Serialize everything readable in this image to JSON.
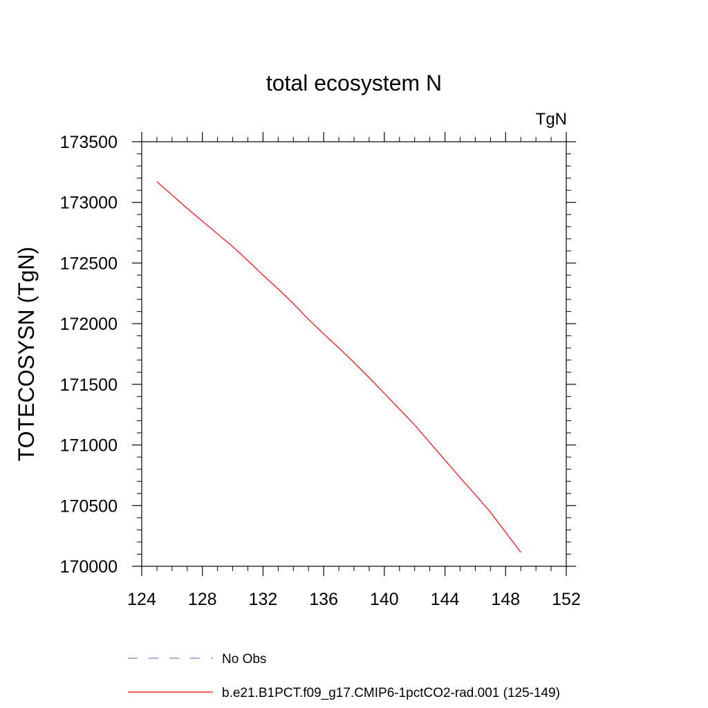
{
  "chart_data": {
    "type": "line",
    "title": "total ecosystem N",
    "units_label": "TgN",
    "xlabel": "",
    "ylabel": "TOTECOSYSN  (TgN)",
    "xlim": [
      124,
      152
    ],
    "ylim": [
      170000,
      173500
    ],
    "x_ticks": [
      124,
      128,
      132,
      136,
      140,
      144,
      148,
      152
    ],
    "y_ticks": [
      170000,
      170500,
      171000,
      171500,
      172000,
      172500,
      173000,
      173500
    ],
    "grid": false,
    "legend_position": "bottom",
    "series": [
      {
        "name": "b.e21.B1PCT.f09_g17.CMIP6-1pctCO2-rad.001 (125-149)",
        "color": "#ff0000",
        "dash": "solid",
        "x": [
          125,
          126,
          127,
          128,
          129,
          130,
          131,
          132,
          133,
          134,
          135,
          136,
          137,
          138,
          139,
          140,
          141,
          142,
          143,
          144,
          145,
          146,
          147,
          148,
          149
        ],
        "y": [
          173170,
          173060,
          172950,
          172845,
          172740,
          172635,
          172520,
          172400,
          172285,
          172165,
          172035,
          171915,
          171800,
          171680,
          171555,
          171425,
          171295,
          171165,
          171020,
          170875,
          170730,
          170590,
          170445,
          170280,
          170115
        ]
      }
    ],
    "legend": [
      {
        "label": "No Obs",
        "color": "#7b7bc8",
        "dash": "dashed"
      },
      {
        "label": "b.e21.B1PCT.f09_g17.CMIP6-1pctCO2-rad.001 (125-149)",
        "color": "#ff0000",
        "dash": "solid"
      }
    ]
  }
}
